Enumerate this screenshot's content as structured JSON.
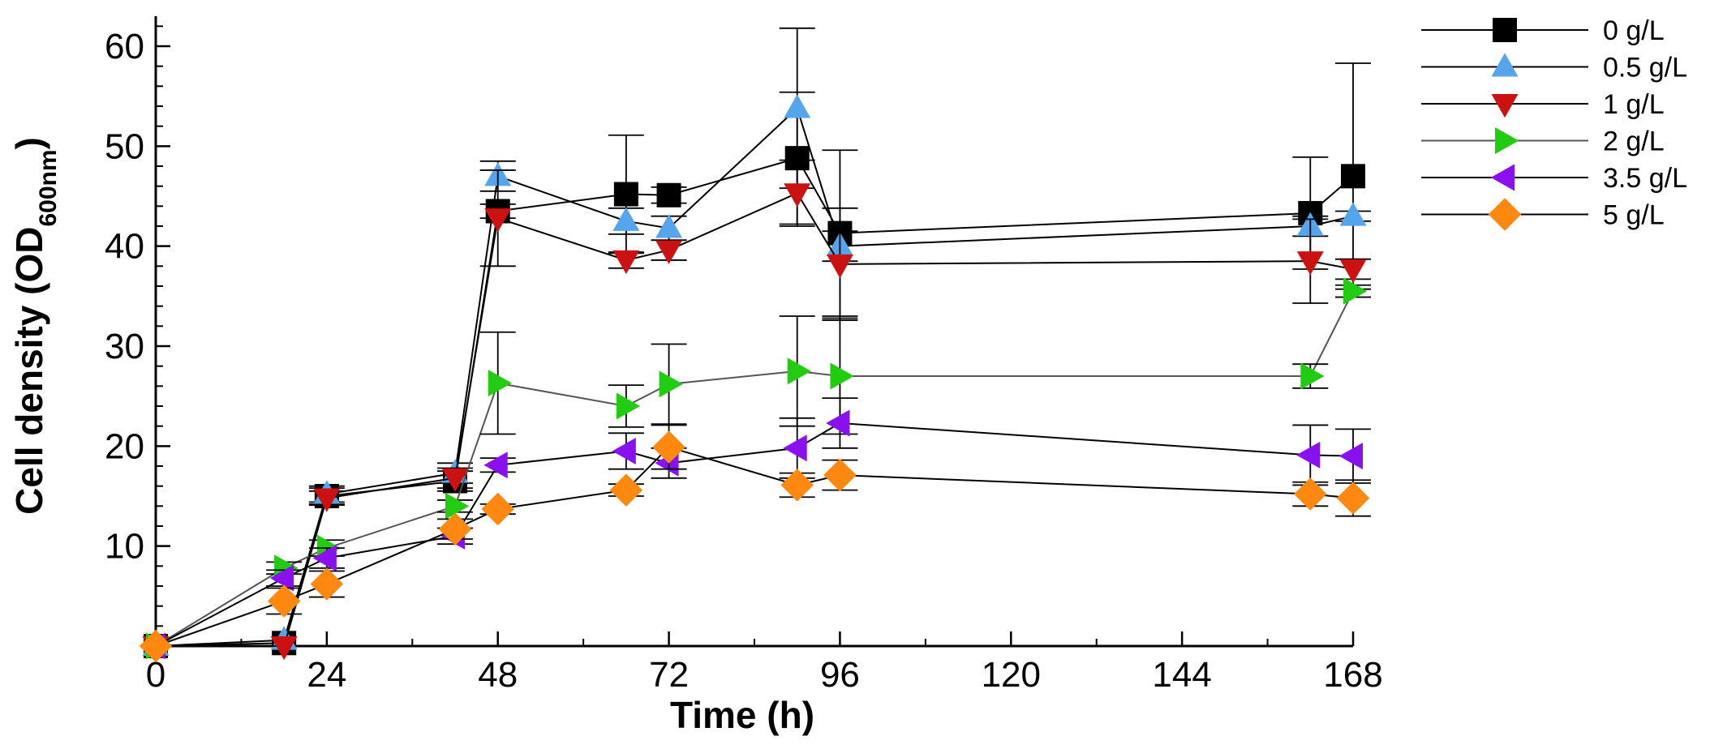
{
  "chart_data": {
    "type": "line",
    "xlabel": "Time (h)",
    "ylabel": {
      "prefix": "Cell density (OD",
      "subscript": "600nm",
      "suffix": ")"
    },
    "xlim": [
      0,
      168
    ],
    "ylim": [
      0,
      63
    ],
    "x_ticks": [
      0,
      24,
      48,
      72,
      96,
      120,
      144,
      168
    ],
    "x_tick_labels": [
      "0",
      "24",
      "48",
      "72",
      "96",
      "120",
      "144",
      "168"
    ],
    "y_ticks": [
      10,
      20,
      30,
      40,
      50,
      60
    ],
    "y_tick_labels": [
      "10",
      "20",
      "30",
      "40",
      "50",
      "60"
    ],
    "legend_position": "right",
    "series": [
      {
        "name": "0 g/L",
        "marker": "square",
        "color": "#000000",
        "line_color": "#000000",
        "x": [
          0,
          18,
          24,
          42,
          48,
          66,
          72,
          90,
          96,
          162,
          168
        ],
        "y": [
          0,
          0.3,
          15,
          16.5,
          43.5,
          45.2,
          45.1,
          48.8,
          41.3,
          43.3,
          47
        ],
        "err": [
          0,
          0,
          0.8,
          1,
          0.7,
          5.9,
          0.8,
          6.6,
          8.3,
          5.6,
          11.3
        ]
      },
      {
        "name": "0.5 g/L",
        "marker": "triangle-up",
        "color": "#56A5EC",
        "line_color": "#000000",
        "x": [
          0,
          18,
          24,
          42,
          48,
          66,
          72,
          90,
          96,
          162,
          168
        ],
        "y": [
          0,
          0.6,
          15.2,
          17.3,
          47,
          42.5,
          41.8,
          53.8,
          40,
          42,
          43
        ],
        "err": [
          0,
          0,
          0.8,
          1,
          1.5,
          1.3,
          1.2,
          8,
          1.5,
          1,
          0.5
        ]
      },
      {
        "name": "1 g/L",
        "marker": "triangle-down",
        "color": "#CC1111",
        "line_color": "#000000",
        "x": [
          0,
          18,
          24,
          42,
          48,
          66,
          72,
          90,
          96,
          162,
          168
        ],
        "y": [
          0,
          0,
          14.8,
          16.8,
          42.8,
          38.6,
          39.6,
          45.3,
          38.2,
          38.5,
          37.7
        ],
        "err": [
          0,
          0,
          0.7,
          1,
          4.8,
          0.8,
          1,
          3.3,
          5.6,
          4.2,
          1
        ]
      },
      {
        "name": "2 g/L",
        "marker": "triangle-right",
        "color": "#22CC11",
        "line_color": "#555555",
        "x": [
          0,
          18,
          24,
          42,
          48,
          66,
          72,
          90,
          96,
          162,
          168
        ],
        "y": [
          0,
          7.8,
          9.8,
          14,
          26.3,
          24,
          26.2,
          27.5,
          27,
          27,
          35.5
        ],
        "err": [
          0,
          0.6,
          0.8,
          0.6,
          5.1,
          2.1,
          4,
          5.5,
          5.8,
          1.2,
          0.6
        ]
      },
      {
        "name": "3.5 g/L",
        "marker": "triangle-left",
        "color": "#8811EE",
        "line_color": "#000000",
        "x": [
          0,
          18,
          24,
          42,
          48,
          66,
          72,
          90,
          96,
          162,
          168
        ],
        "y": [
          0,
          6.8,
          8.8,
          11,
          18.1,
          19.5,
          18.3,
          19.8,
          22.3,
          19.1,
          19
        ],
        "err": [
          0,
          0.8,
          1,
          0.8,
          0.7,
          1.8,
          1.5,
          3,
          2.5,
          3,
          2.7
        ]
      },
      {
        "name": "5 g/L",
        "marker": "diamond",
        "color": "#FF8811",
        "line_color": "#000000",
        "x": [
          0,
          18,
          24,
          42,
          48,
          66,
          72,
          90,
          96,
          162,
          168
        ],
        "y": [
          0,
          4.5,
          6.2,
          11.7,
          13.7,
          15.6,
          19.9,
          16.1,
          17.1,
          15.2,
          14.8
        ],
        "err": [
          0,
          1.3,
          1.3,
          1,
          0.5,
          0.6,
          2.2,
          1.2,
          1.5,
          1.2,
          1.8
        ]
      }
    ]
  }
}
